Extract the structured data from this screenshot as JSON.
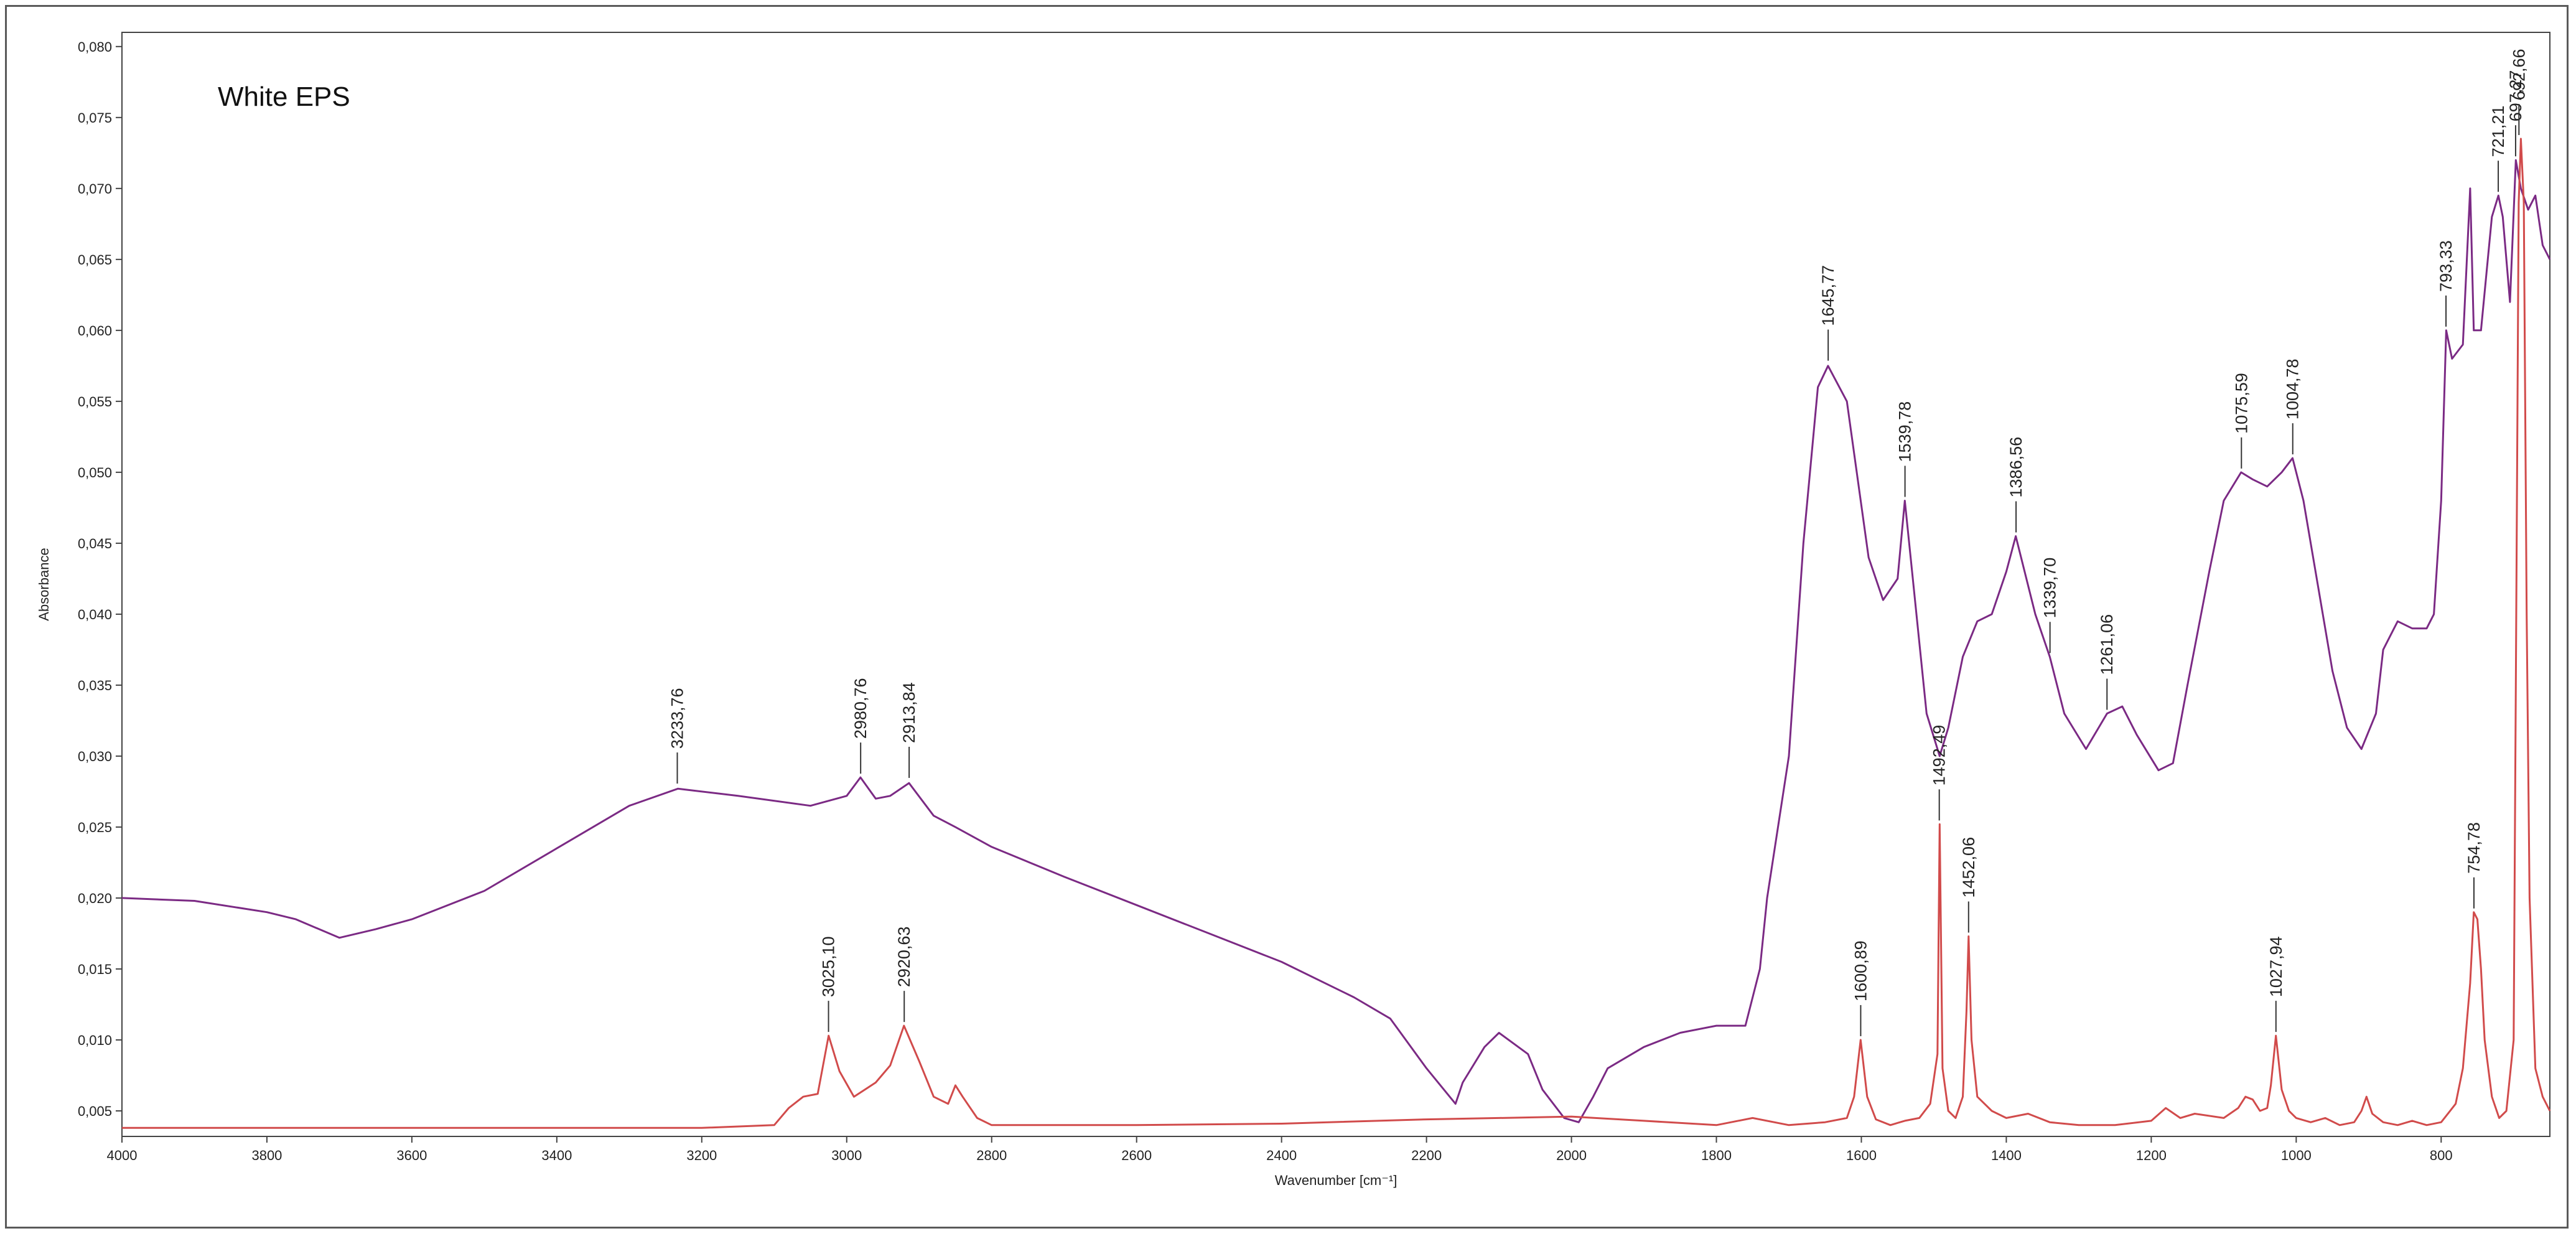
{
  "chart_data": {
    "type": "line",
    "title": "",
    "annotation": "White EPS",
    "xlabel": "Wavenumber [cm⁻¹]",
    "ylabel": "Absorbance",
    "xlim": [
      4000,
      650
    ],
    "x_reversed": true,
    "ylim": [
      0.0032,
      0.081
    ],
    "x_ticks": [
      4000,
      3800,
      3600,
      3400,
      3200,
      3000,
      2800,
      2600,
      2400,
      2200,
      2000,
      1800,
      1600,
      1400,
      1200,
      1000,
      800
    ],
    "x_tick_labels": [
      "4000",
      "3800",
      "3600",
      "3400",
      "3200",
      "3000",
      "2800",
      "2600",
      "2400",
      "2200",
      "2000",
      "1800",
      "1600",
      "1400",
      "1200",
      "1000",
      "800"
    ],
    "y_ticks": [
      0.005,
      0.01,
      0.015,
      0.02,
      0.025,
      0.03,
      0.035,
      0.04,
      0.045,
      0.05,
      0.055,
      0.06,
      0.065,
      0.07,
      0.075,
      0.08
    ],
    "y_tick_labels": [
      "0,005",
      "0,010",
      "0,015",
      "0,020",
      "0,025",
      "0,030",
      "0,035",
      "0,040",
      "0,045",
      "0,050",
      "0,055",
      "0,060",
      "0,065",
      "0,070",
      "0,075",
      "0,080"
    ],
    "grid": false,
    "legend": "none",
    "series": [
      {
        "color": "#7b2a84",
        "x": [
          4000,
          3900,
          3800,
          3760,
          3700,
          3650,
          3600,
          3500,
          3400,
          3300,
          3233,
          3150,
          3050,
          3000,
          2981,
          2960,
          2940,
          2914,
          2880,
          2850,
          2800,
          2700,
          2600,
          2500,
          2400,
          2300,
          2250,
          2200,
          2160,
          2150,
          2120,
          2100,
          2060,
          2040,
          2010,
          1990,
          1970,
          1950,
          1900,
          1850,
          1800,
          1760,
          1740,
          1730,
          1700,
          1680,
          1660,
          1646,
          1620,
          1590,
          1570,
          1550,
          1540,
          1530,
          1510,
          1492,
          1480,
          1460,
          1440,
          1420,
          1400,
          1387,
          1360,
          1340,
          1320,
          1290,
          1261,
          1240,
          1220,
          1190,
          1170,
          1150,
          1120,
          1100,
          1076,
          1060,
          1040,
          1020,
          1005,
          990,
          970,
          950,
          930,
          910,
          890,
          880,
          860,
          840,
          820,
          810,
          800,
          793,
          785,
          770,
          760,
          755,
          745,
          730,
          721,
          715,
          705,
          697,
          690,
          680,
          670,
          660,
          650
        ],
        "y": [
          0.02,
          0.0198,
          0.019,
          0.0185,
          0.0172,
          0.0178,
          0.0185,
          0.0205,
          0.0235,
          0.0265,
          0.0277,
          0.0272,
          0.0265,
          0.0272,
          0.0285,
          0.027,
          0.0272,
          0.0281,
          0.0258,
          0.025,
          0.0236,
          0.0215,
          0.0195,
          0.0175,
          0.0155,
          0.013,
          0.0115,
          0.008,
          0.0055,
          0.007,
          0.0095,
          0.0105,
          0.009,
          0.0065,
          0.0045,
          0.0042,
          0.006,
          0.008,
          0.0095,
          0.0105,
          0.011,
          0.011,
          0.015,
          0.02,
          0.03,
          0.045,
          0.056,
          0.0575,
          0.055,
          0.044,
          0.041,
          0.0425,
          0.048,
          0.043,
          0.033,
          0.03,
          0.032,
          0.037,
          0.0395,
          0.04,
          0.043,
          0.0455,
          0.04,
          0.037,
          0.033,
          0.0305,
          0.033,
          0.0335,
          0.0315,
          0.029,
          0.0295,
          0.035,
          0.043,
          0.048,
          0.05,
          0.0495,
          0.049,
          0.05,
          0.051,
          0.048,
          0.042,
          0.036,
          0.032,
          0.0305,
          0.033,
          0.0375,
          0.0395,
          0.039,
          0.039,
          0.04,
          0.048,
          0.06,
          0.058,
          0.059,
          0.07,
          0.06,
          0.06,
          0.068,
          0.0695,
          0.068,
          0.062,
          0.072,
          0.07,
          0.0685,
          0.0695,
          0.066,
          0.065
        ]
      },
      {
        "color": "#d14b4b",
        "x": [
          4000,
          3800,
          3600,
          3400,
          3200,
          3100,
          3080,
          3060,
          3040,
          3025,
          3010,
          2990,
          2960,
          2940,
          2921,
          2900,
          2880,
          2860,
          2850,
          2840,
          2820,
          2800,
          2600,
          2400,
          2200,
          2100,
          2000,
          1900,
          1800,
          1750,
          1700,
          1650,
          1620,
          1610,
          1601,
          1592,
          1580,
          1560,
          1540,
          1520,
          1505,
          1495,
          1492,
          1488,
          1480,
          1470,
          1460,
          1455,
          1452,
          1448,
          1440,
          1420,
          1400,
          1370,
          1340,
          1300,
          1250,
          1200,
          1180,
          1160,
          1140,
          1100,
          1080,
          1070,
          1060,
          1050,
          1040,
          1035,
          1028,
          1020,
          1010,
          1000,
          980,
          960,
          940,
          920,
          910,
          903,
          895,
          880,
          860,
          840,
          820,
          800,
          780,
          770,
          760,
          755,
          750,
          745,
          740,
          730,
          720,
          710,
          700,
          697,
          693,
          690,
          686,
          682,
          678,
          670,
          660,
          650
        ],
        "y": [
          0.0038,
          0.0038,
          0.0038,
          0.0038,
          0.0038,
          0.004,
          0.0052,
          0.006,
          0.0062,
          0.0103,
          0.0078,
          0.006,
          0.007,
          0.0082,
          0.011,
          0.0085,
          0.006,
          0.0055,
          0.0068,
          0.006,
          0.0045,
          0.004,
          0.004,
          0.0041,
          0.0044,
          0.0045,
          0.0046,
          0.0043,
          0.004,
          0.0045,
          0.004,
          0.0042,
          0.0045,
          0.006,
          0.01,
          0.006,
          0.0044,
          0.004,
          0.0043,
          0.0045,
          0.0055,
          0.009,
          0.0252,
          0.008,
          0.005,
          0.0045,
          0.006,
          0.012,
          0.0173,
          0.01,
          0.006,
          0.005,
          0.0045,
          0.0048,
          0.0042,
          0.004,
          0.004,
          0.0043,
          0.0052,
          0.0045,
          0.0048,
          0.0045,
          0.0052,
          0.006,
          0.0058,
          0.005,
          0.0052,
          0.0068,
          0.0103,
          0.0065,
          0.005,
          0.0045,
          0.0042,
          0.0045,
          0.004,
          0.0042,
          0.005,
          0.006,
          0.0048,
          0.0042,
          0.004,
          0.0043,
          0.004,
          0.0042,
          0.0055,
          0.008,
          0.014,
          0.019,
          0.0185,
          0.015,
          0.01,
          0.006,
          0.0045,
          0.005,
          0.01,
          0.035,
          0.069,
          0.0735,
          0.069,
          0.04,
          0.02,
          0.008,
          0.006,
          0.005
        ]
      }
    ],
    "peak_labels": [
      {
        "x": 3233.76,
        "y": 0.0278,
        "label": "3233,76"
      },
      {
        "x": 2980.76,
        "y": 0.0285,
        "label": "2980,76"
      },
      {
        "x": 2913.84,
        "y": 0.0282,
        "label": "2913,84"
      },
      {
        "x": 1645.77,
        "y": 0.0576,
        "label": "1645,77"
      },
      {
        "x": 1539.78,
        "y": 0.048,
        "label": "1539,78"
      },
      {
        "x": 1386.56,
        "y": 0.0455,
        "label": "1386,56"
      },
      {
        "x": 1339.7,
        "y": 0.037,
        "label": "1339,70"
      },
      {
        "x": 1261.06,
        "y": 0.033,
        "label": "1261,06"
      },
      {
        "x": 1075.59,
        "y": 0.05,
        "label": "1075,59"
      },
      {
        "x": 1004.78,
        "y": 0.051,
        "label": "1004,78"
      },
      {
        "x": 793.33,
        "y": 0.06,
        "label": "793,33"
      },
      {
        "x": 721.21,
        "y": 0.0695,
        "label": "721,21"
      },
      {
        "x": 697.27,
        "y": 0.072,
        "label": "697,27"
      },
      {
        "x": 692.66,
        "y": 0.0735,
        "label": "692,66"
      },
      {
        "x": 3025.1,
        "y": 0.0103,
        "label": "3025,10"
      },
      {
        "x": 2920.63,
        "y": 0.011,
        "label": "2920,63"
      },
      {
        "x": 1600.89,
        "y": 0.01,
        "label": "1600,89"
      },
      {
        "x": 1492.49,
        "y": 0.0252,
        "label": "1492,49"
      },
      {
        "x": 1452.06,
        "y": 0.0173,
        "label": "1452,06"
      },
      {
        "x": 1027.94,
        "y": 0.0103,
        "label": "1027,94"
      },
      {
        "x": 754.78,
        "y": 0.019,
        "label": "754,78"
      }
    ]
  }
}
